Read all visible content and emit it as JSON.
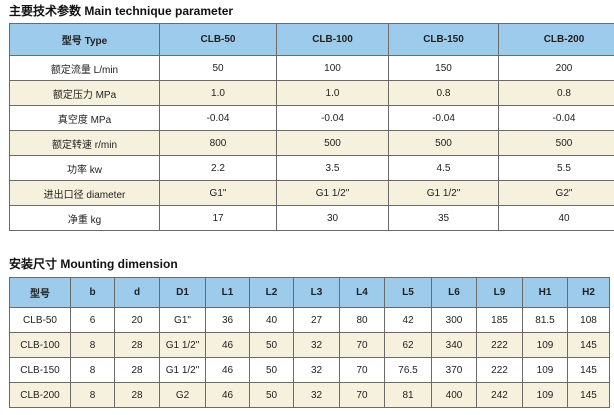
{
  "params": {
    "title": "主要技术参数 Main technique parameter",
    "headers": [
      "型号 Type",
      "CLB-50",
      "CLB-100",
      "CLB-150",
      "CLB-200"
    ],
    "rows": [
      [
        "额定流量 L/min",
        "50",
        "100",
        "150",
        "200"
      ],
      [
        "额定压力 MPa",
        "1.0",
        "1.0",
        "0.8",
        "0.8"
      ],
      [
        "真空度 MPa",
        "-0.04",
        "-0.04",
        "-0.04",
        "-0.04"
      ],
      [
        "额定转速 r/min",
        "800",
        "500",
        "500",
        "500"
      ],
      [
        "功率 kw",
        "2.2",
        "3.5",
        "4.5",
        "5.5"
      ],
      [
        "进出口径 diameter",
        "G1\"",
        "G1 1/2\"",
        "G1 1/2\"",
        "G2\""
      ],
      [
        "净重 kg",
        "17",
        "30",
        "35",
        "40"
      ]
    ]
  },
  "mounting": {
    "title": "安装尺寸 Mounting dimension",
    "headers": [
      "型号",
      "b",
      "d",
      "D1",
      "L1",
      "L2",
      "L3",
      "L4",
      "L5",
      "L6",
      "L9",
      "H1",
      "H2"
    ],
    "rows": [
      [
        "CLB-50",
        "6",
        "20",
        "G1\"",
        "36",
        "40",
        "27",
        "80",
        "42",
        "300",
        "185",
        "81.5",
        "108"
      ],
      [
        "CLB-100",
        "8",
        "28",
        "G1 1/2\"",
        "46",
        "50",
        "32",
        "70",
        "62",
        "340",
        "222",
        "109",
        "145"
      ],
      [
        "CLB-150",
        "8",
        "28",
        "G1 1/2\"",
        "46",
        "50",
        "32",
        "70",
        "76.5",
        "370",
        "222",
        "109",
        "145"
      ],
      [
        "CLB-200",
        "8",
        "28",
        "G2",
        "46",
        "50",
        "32",
        "70",
        "81",
        "400",
        "242",
        "109",
        "145"
      ]
    ]
  }
}
